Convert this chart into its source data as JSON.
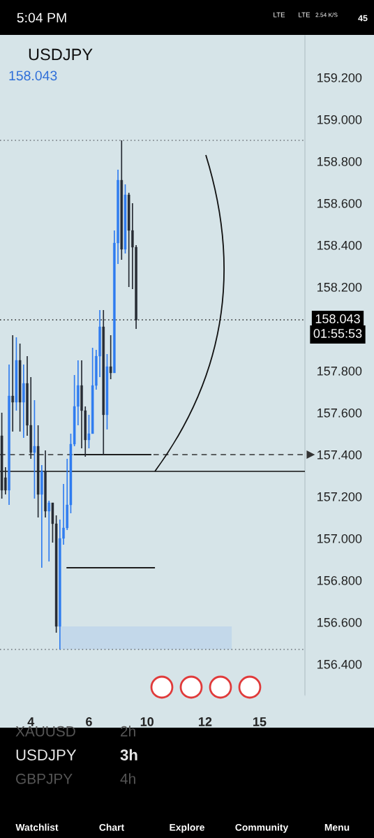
{
  "chart_data": {
    "type": "candlestick",
    "title": "USDJPY",
    "subtitle": "158.043",
    "categories": [
      null,
      null,
      null,
      null,
      null,
      null,
      null,
      null,
      "4",
      null,
      null,
      null,
      null,
      null,
      null,
      null,
      null,
      null,
      null,
      null,
      null,
      null,
      null,
      null,
      "6",
      null,
      null,
      null,
      null,
      null,
      null,
      null,
      null,
      null,
      null,
      null,
      null,
      null,
      null,
      null,
      "10",
      null,
      null,
      null,
      null,
      null,
      null,
      null,
      null,
      null,
      null,
      null,
      null,
      null,
      null,
      null,
      "12",
      null,
      null,
      null,
      null,
      null,
      null,
      null,
      null,
      null,
      null,
      null,
      null,
      null,
      null,
      "15",
      null,
      null,
      null,
      null,
      null,
      null,
      null,
      null,
      null,
      null,
      null,
      null
    ],
    "ohlc": [
      [
        157.49,
        157.6,
        157.19,
        157.23
      ],
      [
        157.29,
        157.34,
        157.21,
        157.23
      ],
      [
        157.23,
        157.83,
        157.16,
        157.68
      ],
      [
        157.68,
        157.97,
        157.51,
        157.65
      ],
      [
        157.65,
        157.96,
        157.61,
        157.85
      ],
      [
        157.85,
        157.93,
        157.51,
        157.65
      ],
      [
        157.65,
        157.83,
        157.48,
        157.74
      ],
      [
        157.74,
        157.87,
        157.49,
        157.54
      ],
      [
        157.54,
        157.77,
        157.38,
        157.41
      ],
      [
        157.41,
        157.66,
        157.19,
        157.44
      ],
      [
        157.44,
        157.54,
        157.1,
        157.21
      ],
      [
        157.21,
        157.35,
        156.86,
        157.32
      ],
      [
        157.32,
        157.42,
        157.1,
        157.13
      ],
      [
        157.13,
        157.18,
        156.89,
        157.17
      ],
      [
        157.17,
        157.17,
        156.98,
        157.07
      ],
      [
        157.07,
        157.11,
        156.55,
        156.58
      ],
      [
        156.58,
        157.09,
        156.47,
        157.0
      ],
      [
        157.0,
        157.26,
        156.97,
        157.05
      ],
      [
        157.05,
        157.38,
        157.04,
        157.16
      ],
      [
        157.16,
        157.5,
        157.12,
        157.45
      ],
      [
        157.45,
        157.78,
        157.44,
        157.63
      ],
      [
        157.63,
        157.85,
        157.54,
        157.73
      ],
      [
        157.73,
        157.85,
        157.43,
        157.61
      ],
      [
        157.61,
        157.63,
        157.39,
        157.47
      ],
      [
        157.47,
        157.59,
        157.43,
        157.5
      ],
      [
        157.5,
        157.91,
        157.5,
        157.73
      ],
      [
        157.73,
        157.9,
        157.71,
        157.87
      ],
      [
        157.87,
        158.09,
        157.77,
        158.01
      ],
      [
        158.01,
        158.09,
        157.4,
        157.59
      ],
      [
        157.59,
        157.88,
        157.52,
        157.82
      ],
      [
        157.82,
        157.97,
        157.76,
        157.79
      ],
      [
        157.79,
        158.47,
        157.79,
        158.41
      ],
      [
        158.41,
        158.76,
        158.31,
        158.71
      ],
      [
        158.71,
        158.9,
        158.33,
        158.38
      ],
      [
        158.38,
        158.69,
        158.36,
        158.64
      ],
      [
        158.64,
        158.65,
        158.2,
        158.47
      ],
      [
        158.47,
        158.6,
        158.19,
        158.39
      ],
      [
        158.39,
        158.4,
        158.0,
        158.043
      ],
      null,
      null,
      null,
      null,
      null,
      null,
      null,
      null,
      null,
      null,
      null,
      null,
      null,
      null,
      null,
      null,
      null,
      null,
      null,
      null,
      null,
      null,
      null,
      null,
      null,
      null,
      null,
      null,
      null,
      null,
      null,
      null,
      null,
      null,
      null,
      null,
      null,
      null,
      null,
      null,
      null,
      null,
      null,
      null,
      null,
      null
    ],
    "colors": [
      "#262b33",
      "#262b33",
      "#2f7cf0",
      "#262b33",
      "#2f7cf0",
      "#262b33",
      "#2f7cf0",
      "#262b33",
      "#262b33",
      "#2f7cf0",
      "#262b33",
      "#2f7cf0",
      "#262b33",
      "#2f7cf0",
      "#262b33",
      "#262b33",
      "#2f7cf0",
      "#2f7cf0",
      "#2f7cf0",
      "#2f7cf0",
      "#2f7cf0",
      "#2f7cf0",
      "#262b33",
      "#262b33",
      "#2f7cf0",
      "#2f7cf0",
      "#2f7cf0",
      "#2f7cf0",
      "#262b33",
      "#2f7cf0",
      "#262b33",
      "#2f7cf0",
      "#2f7cf0",
      "#262b33",
      "#2f7cf0",
      "#262b33",
      "#262b33",
      "#262b33",
      null,
      null,
      null,
      null,
      null,
      null,
      null,
      null,
      null,
      null,
      null,
      null,
      null,
      null,
      null,
      null,
      null,
      null,
      null,
      null,
      null,
      null,
      null,
      null,
      null,
      null,
      null,
      null,
      null,
      null,
      null,
      null,
      null,
      null,
      null,
      null,
      null,
      null,
      null,
      null,
      null,
      null,
      null,
      null,
      null,
      null
    ],
    "series": [
      {
        "type": "line",
        "color": "#1e1e1e",
        "values": [
          null,
          null,
          null,
          null,
          null,
          null,
          null,
          null,
          null,
          null,
          null,
          null,
          null,
          null,
          null,
          null,
          null,
          null,
          null,
          null,
          157.4,
          157.4,
          157.4,
          157.4,
          157.4,
          157.4,
          157.4,
          157.4,
          157.4,
          157.4,
          157.4,
          157.4,
          157.4,
          157.4,
          157.4,
          157.4,
          157.4,
          157.4,
          157.4,
          157.4,
          157.4,
          157.4,
          null,
          null,
          null,
          null,
          null,
          null,
          null,
          null,
          null,
          null,
          null,
          null,
          null,
          null,
          null,
          null,
          null,
          null,
          null,
          null,
          null,
          null,
          null,
          null,
          null,
          null,
          null,
          null,
          null,
          null,
          null,
          null,
          null,
          null,
          null,
          null,
          null,
          null,
          null,
          null,
          null,
          null
        ]
      },
      {
        "type": "line",
        "color": "#1e1e1e",
        "values": [
          null,
          null,
          null,
          null,
          null,
          null,
          null,
          null,
          null,
          null,
          null,
          null,
          null,
          null,
          null,
          null,
          null,
          null,
          156.86,
          156.86,
          156.86,
          156.86,
          156.86,
          156.86,
          156.86,
          156.86,
          156.86,
          156.86,
          156.86,
          156.86,
          156.86,
          156.86,
          156.86,
          156.86,
          156.86,
          156.86,
          156.86,
          156.86,
          156.86,
          156.86,
          156.86,
          156.86,
          156.86,
          null,
          null,
          null,
          null,
          null,
          null,
          null,
          null,
          null,
          null,
          null,
          null,
          null,
          null,
          null,
          null,
          null,
          null,
          null,
          null,
          null,
          null,
          null,
          null,
          null,
          null,
          null,
          null,
          null,
          null,
          null,
          null,
          null,
          null,
          null,
          null,
          null,
          null,
          null,
          null,
          null
        ]
      }
    ],
    "bands": [
      {
        "axis": "y",
        "from": 156.47,
        "to": 156.58,
        "color": "#c3d8ea"
      }
    ],
    "ref_lines": [
      {
        "axis": "y",
        "value": 158.9,
        "color": "#6a6f75",
        "line_style": "dotted"
      },
      {
        "axis": "y",
        "value": 158.043,
        "color": "#222222",
        "line_style": "dotted"
      },
      {
        "axis": "y",
        "value": 156.47,
        "color": "#6a6f75",
        "line_style": "dotted"
      },
      {
        "axis": "y",
        "value": 157.4,
        "color": "#333333",
        "line_style": "dashed"
      },
      {
        "axis": "y",
        "value": 157.32,
        "color": "#111111",
        "line_style": "solid"
      }
    ],
    "ylim": [
      156.25,
      159.4
    ],
    "yticks": [
      {
        "value": 156.4,
        "label": "156.400"
      },
      {
        "value": 156.6,
        "label": "156.600"
      },
      {
        "value": 156.8,
        "label": "156.800"
      },
      {
        "value": 157.0,
        "label": "157.000"
      },
      {
        "value": 157.2,
        "label": "157.200"
      },
      {
        "value": 157.4,
        "label": "157.400"
      },
      {
        "value": 157.6,
        "label": "157.600"
      },
      {
        "value": 157.8,
        "label": "157.800"
      },
      {
        "value": 158.2,
        "label": "158.200"
      },
      {
        "value": 158.4,
        "label": "158.400"
      },
      {
        "value": 158.6,
        "label": "158.600"
      },
      {
        "value": 158.8,
        "label": "158.800"
      },
      {
        "value": 159.0,
        "label": "159.000"
      },
      {
        "value": 159.2,
        "label": "159.200"
      }
    ],
    "grid": false,
    "annotations": [
      "158.043",
      "01:55:53",
      "5:04 PM",
      "LTE",
      "LTE",
      "2.54 K/S",
      "45",
      "XAUUSD",
      "2h",
      "USDJPY",
      "3h",
      "GBPJPY",
      "4h",
      "Watchlist",
      "Chart",
      "Explore",
      "Community",
      "Menu"
    ]
  }
}
